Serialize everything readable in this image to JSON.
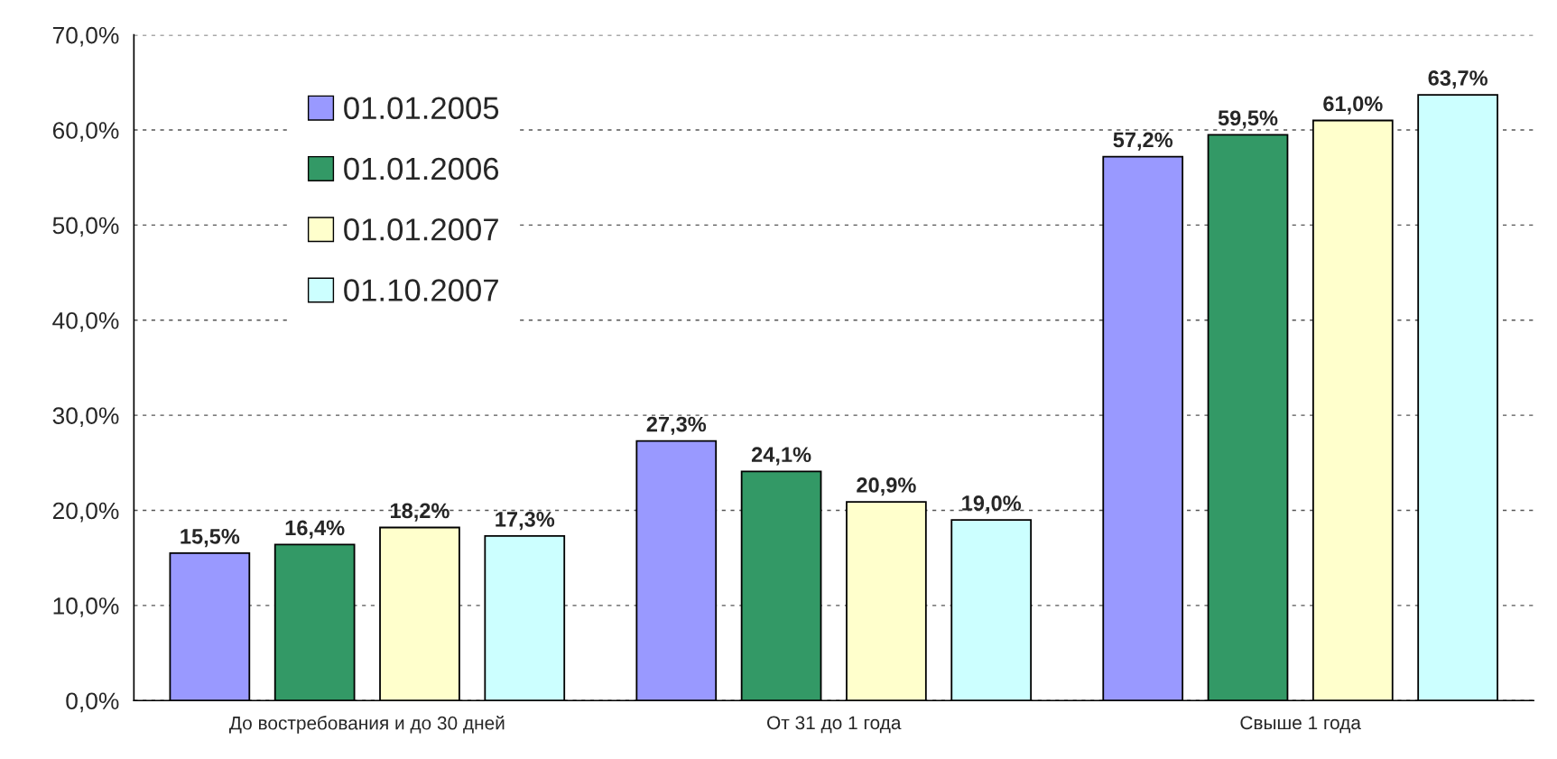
{
  "chart_data": {
    "type": "bar",
    "categories": [
      "До востребования и до 30 дней",
      "От 31 до 1 года",
      "Свыше 1 года"
    ],
    "series": [
      {
        "name": "01.01.2005",
        "color": "#9999ff",
        "values": [
          15.5,
          27.3,
          57.2
        ],
        "value_labels": [
          "15,5%",
          "27,3%",
          "57,2%"
        ]
      },
      {
        "name": "01.01.2006",
        "color": "#339966",
        "values": [
          16.4,
          24.1,
          59.5
        ],
        "value_labels": [
          "16,4%",
          "24,1%",
          "59,5%"
        ]
      },
      {
        "name": "01.01.2007",
        "color": "#ffffcc",
        "values": [
          18.2,
          20.9,
          61.0
        ],
        "value_labels": [
          "18,2%",
          "20,9%",
          "61,0%"
        ]
      },
      {
        "name": "01.10.2007",
        "color": "#ccffff",
        "values": [
          17.3,
          19.0,
          63.7
        ],
        "value_labels": [
          "17,3%",
          "19,0%",
          "63,7%"
        ]
      }
    ],
    "ylim": [
      0,
      70
    ],
    "yticks": [
      {
        "value": 0,
        "label": "0,0%"
      },
      {
        "value": 10,
        "label": "10,0%"
      },
      {
        "value": 20,
        "label": "20,0%"
      },
      {
        "value": 30,
        "label": "30,0%"
      },
      {
        "value": 40,
        "label": "40,0%"
      },
      {
        "value": 50,
        "label": "50,0%"
      },
      {
        "value": 60,
        "label": "60,0%"
      },
      {
        "value": 70,
        "label": "70,0%"
      }
    ],
    "grid": "y",
    "legend": "top left"
  }
}
